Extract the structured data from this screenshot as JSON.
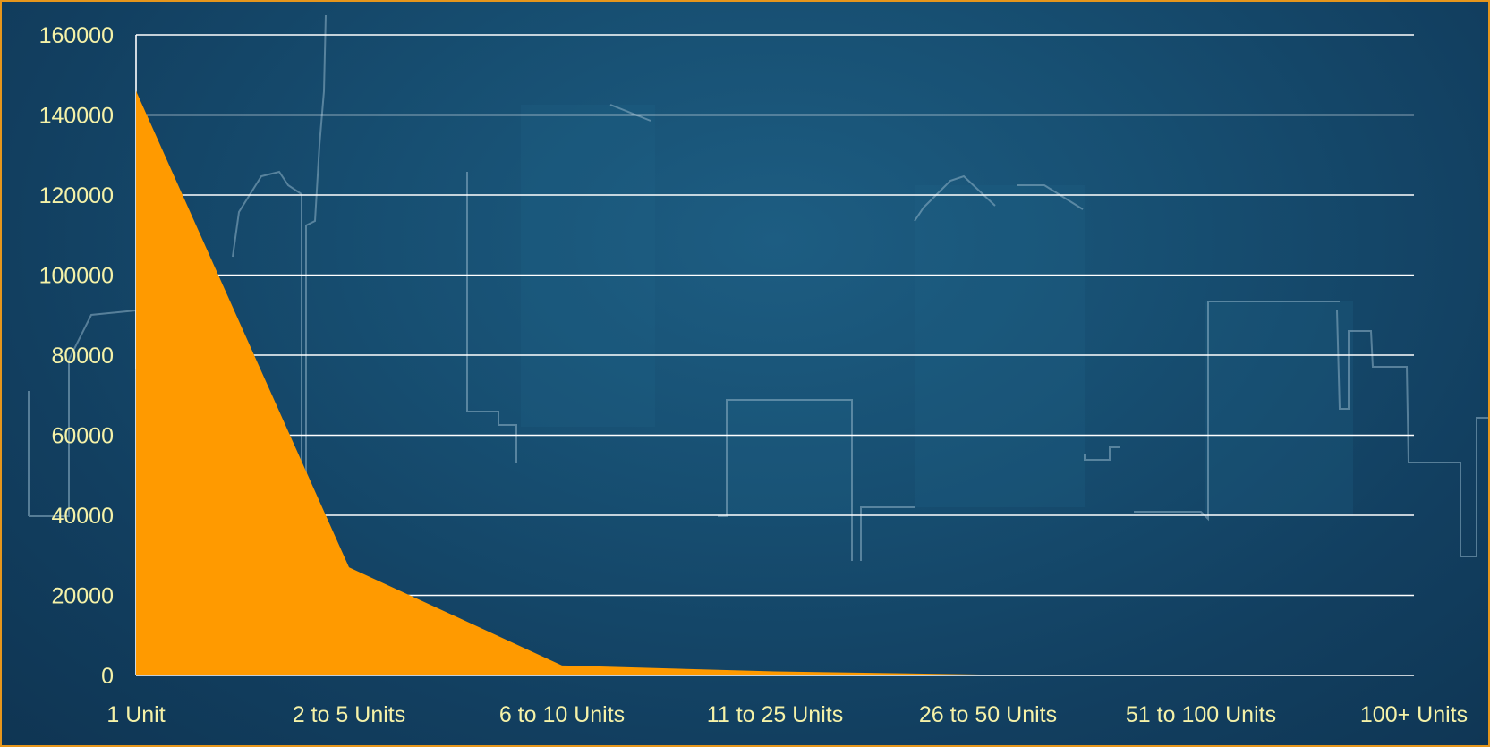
{
  "chart_data": {
    "type": "area",
    "categories": [
      "1 Unit",
      "2 to 5 Units",
      "6 to 10 Units",
      "11 to 25 Units",
      "26 to 50 Units",
      "51 to 100 Units",
      "100+ Units"
    ],
    "values": [
      146000,
      27000,
      2500,
      1000,
      200,
      100,
      0
    ],
    "ylim": [
      0,
      160000
    ],
    "yticks": [
      "0",
      "20000",
      "40000",
      "60000",
      "80000",
      "100000",
      "120000",
      "140000",
      "160000"
    ],
    "grid": true,
    "legend": "none",
    "colors": {
      "area": "#ff9a00",
      "gridline": "#ffffff",
      "tick_label": "#f5f2a8",
      "border": "#e6961c",
      "background": "#174f72"
    }
  }
}
